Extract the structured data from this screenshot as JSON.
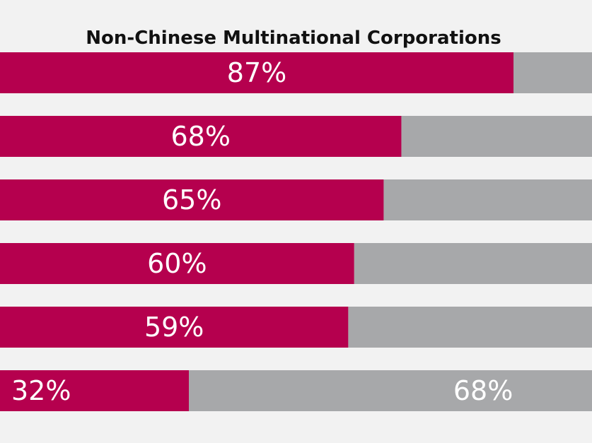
{
  "chart_data": {
    "type": "bar",
    "orientation": "horizontal",
    "stacked": true,
    "title": "Non-Chinese Multinational Corporations",
    "xlabel": "",
    "ylabel": "",
    "xlim": [
      0,
      100
    ],
    "grid": false,
    "legend": "none",
    "colors": {
      "primary": "#b5004e",
      "secondary": "#a7a8aa",
      "label": "#ffffff"
    },
    "series": [
      {
        "values": [
          87,
          68,
          65,
          60,
          59,
          32
        ],
        "labels": [
          "87%",
          "68%",
          "65%",
          "60%",
          "59%",
          "32%"
        ]
      },
      {
        "values": [
          13,
          32,
          35,
          40,
          41,
          68
        ],
        "labels": [
          "",
          "",
          "",
          "",
          "",
          "68%"
        ]
      }
    ]
  }
}
